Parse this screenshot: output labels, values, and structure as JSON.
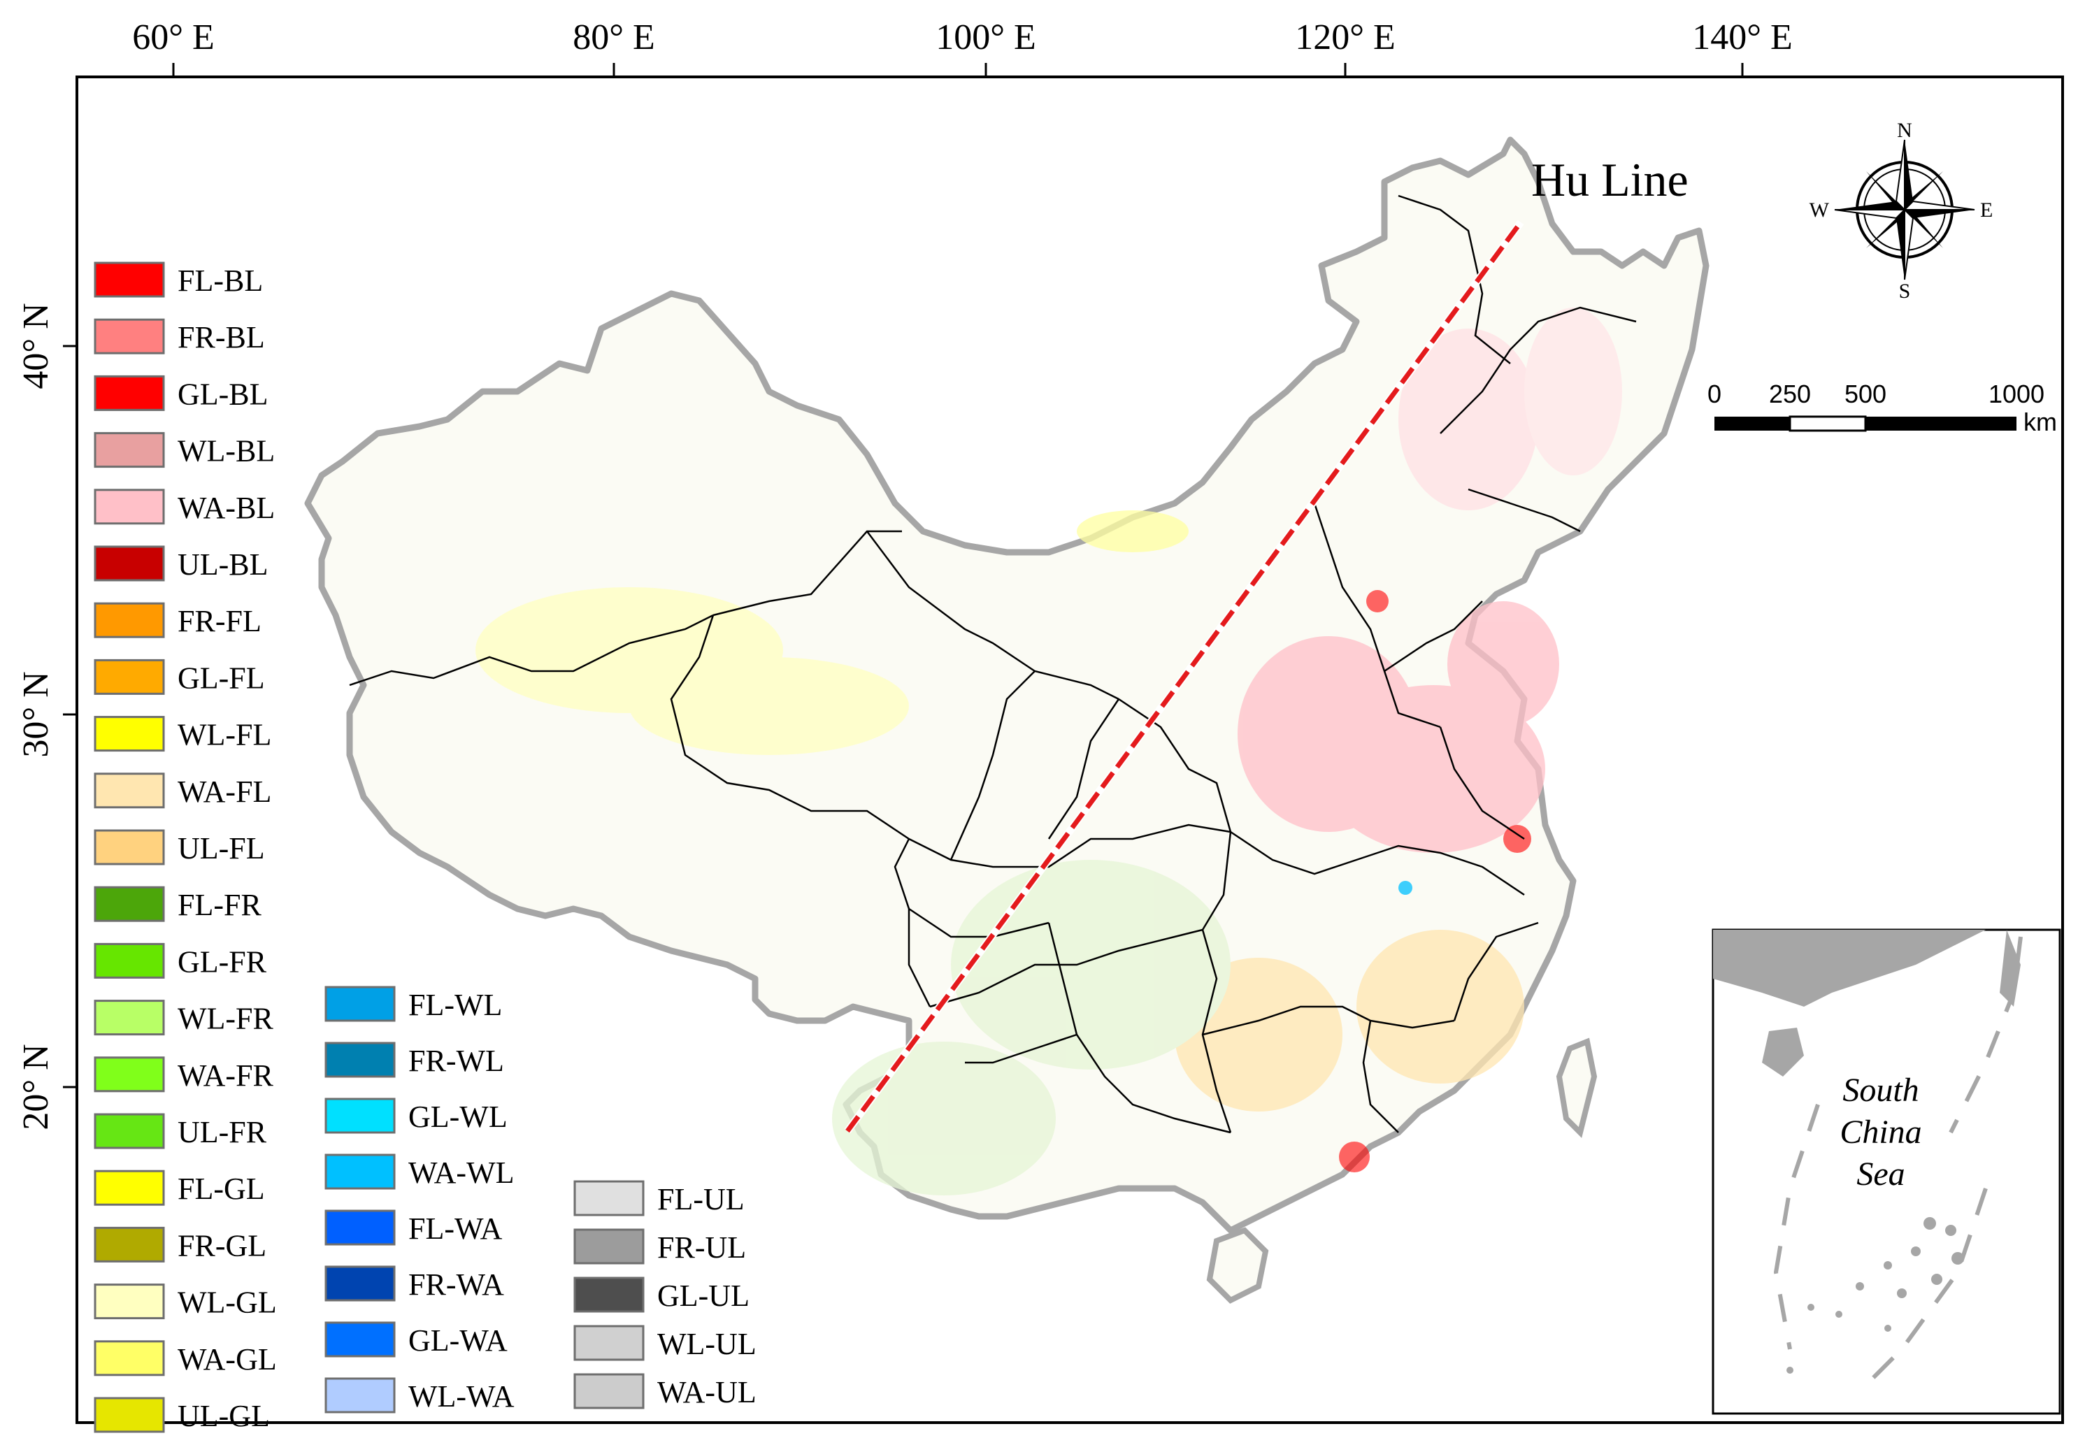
{
  "map": {
    "hu_line_label": "Hu Line",
    "inset_label": [
      "South",
      "China",
      "Sea"
    ],
    "longitude_ticks": [
      "60° E",
      "80° E",
      "100° E",
      "120° E",
      "140° E"
    ],
    "latitude_ticks": [
      "40° N",
      "30° N",
      "20° N"
    ],
    "compass": {
      "n": "N",
      "s": "S",
      "e": "E",
      "w": "W"
    },
    "scale_bar": {
      "ticks": [
        "0",
        "250",
        "500",
        "1000"
      ],
      "unit": "km"
    },
    "hu_line_color": "#e41a1c",
    "boundary_color": "#a6a6a6"
  },
  "legend": {
    "column1": [
      {
        "code": "FL-BL",
        "color": "#ff0000"
      },
      {
        "code": "FR-BL",
        "color": "#ff8080"
      },
      {
        "code": "GL-BL",
        "color": "#ff0000"
      },
      {
        "code": "WL-BL",
        "color": "#e8a0a0"
      },
      {
        "code": "WA-BL",
        "color": "#ffc0c8"
      },
      {
        "code": "UL-BL",
        "color": "#c80000"
      },
      {
        "code": "FR-FL",
        "color": "#ff9900"
      },
      {
        "code": "GL-FL",
        "color": "#ffaa00"
      },
      {
        "code": "WL-FL",
        "color": "#ffff00"
      },
      {
        "code": "WA-FL",
        "color": "#ffe6b0"
      },
      {
        "code": "UL-FL",
        "color": "#ffd27f"
      },
      {
        "code": "FL-FR",
        "color": "#4ca60a"
      },
      {
        "code": "GL-FR",
        "color": "#66e600"
      },
      {
        "code": "WL-FR",
        "color": "#b8ff66"
      },
      {
        "code": "WA-FR",
        "color": "#80ff1a"
      },
      {
        "code": "UL-FR",
        "color": "#66e614"
      },
      {
        "code": "FL-GL",
        "color": "#ffff00"
      },
      {
        "code": "FR-GL",
        "color": "#b0aa00"
      },
      {
        "code": "WL-GL",
        "color": "#ffffc0"
      },
      {
        "code": "WA-GL",
        "color": "#ffff66"
      },
      {
        "code": "UL-GL",
        "color": "#e6e600"
      }
    ],
    "column2": [
      {
        "code": "FL-WL",
        "color": "#00a0e6"
      },
      {
        "code": "FR-WL",
        "color": "#0080b0"
      },
      {
        "code": "GL-WL",
        "color": "#00e0ff"
      },
      {
        "code": "WA-WL",
        "color": "#00c0ff"
      },
      {
        "code": "FL-WA",
        "color": "#0060ff"
      },
      {
        "code": "FR-WA",
        "color": "#0044b0"
      },
      {
        "code": "GL-WA",
        "color": "#0070ff"
      },
      {
        "code": "WL-WA",
        "color": "#b0ccff"
      }
    ],
    "column3": [
      {
        "code": "FL-UL",
        "color": "#e0e0e0"
      },
      {
        "code": "FR-UL",
        "color": "#9c9c9c"
      },
      {
        "code": "GL-UL",
        "color": "#4e4e4e"
      },
      {
        "code": "WL-UL",
        "color": "#d0d0d0"
      },
      {
        "code": "WA-UL",
        "color": "#cccccc"
      }
    ]
  }
}
